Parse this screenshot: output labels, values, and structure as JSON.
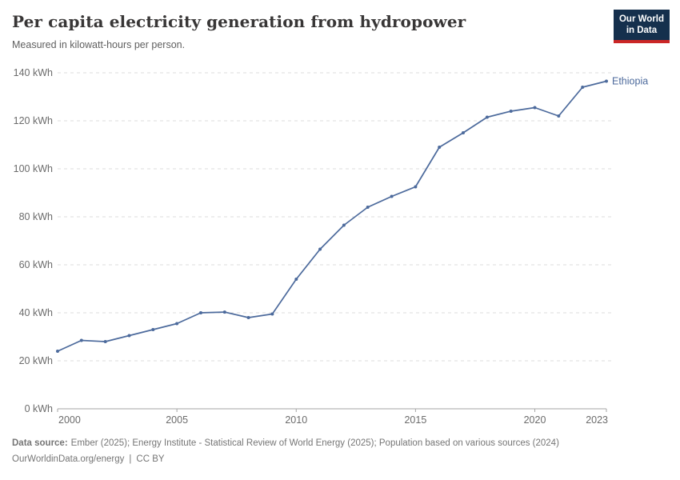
{
  "header": {
    "title": "Per capita electricity generation from hydropower",
    "subtitle": "Measured in kilowatt-hours per person.",
    "logo": {
      "line1": "Our World",
      "line2": "in Data"
    }
  },
  "chart_data": {
    "type": "line",
    "title": "Per capita electricity generation from hydropower",
    "subtitle": "Measured in kilowatt-hours per person.",
    "unit": "kWh",
    "xlabel": "",
    "ylabel": "kWh",
    "x": [
      2000,
      2001,
      2002,
      2003,
      2004,
      2005,
      2006,
      2007,
      2008,
      2009,
      2010,
      2011,
      2012,
      2013,
      2014,
      2015,
      2016,
      2017,
      2018,
      2019,
      2020,
      2021,
      2022,
      2023
    ],
    "series": [
      {
        "name": "Ethiopia",
        "color": "#4c6a9c",
        "values": [
          24,
          28.5,
          28,
          30.5,
          33,
          35.5,
          40,
          40.3,
          38,
          39.5,
          54,
          66.5,
          76.5,
          84,
          88.5,
          92.5,
          109,
          115,
          121.5,
          124,
          125.5,
          122,
          134,
          136.5
        ]
      }
    ],
    "ylim": [
      0,
      140
    ],
    "yticks": [
      0,
      20,
      40,
      60,
      80,
      100,
      120,
      140
    ],
    "ytick_labels": [
      "0 kWh",
      "20 kWh",
      "40 kWh",
      "60 kWh",
      "80 kWh",
      "100 kWh",
      "120 kWh",
      "140 kWh"
    ],
    "xticks": [
      2000,
      2005,
      2010,
      2015,
      2020,
      2023
    ],
    "xtick_labels": [
      "2000",
      "2005",
      "2010",
      "2015",
      "2020",
      "2023"
    ],
    "grid": "horizontal-dashed",
    "legend_position": "line-end-label",
    "entity_label": "Ethiopia"
  },
  "footer": {
    "datasource_label": "Data source:",
    "datasource_text": "Ember (2025); Energy Institute - Statistical Review of World Energy (2025); Population based on various sources (2024)",
    "link_text": "OurWorldinData.org/energy",
    "separator": "|",
    "license_text": "CC BY"
  },
  "colors": {
    "line": "#4c6a9c",
    "grid": "#dcdcdc",
    "axis": "#a5a5a5",
    "tick_text": "#6b6b6b",
    "logo_bg": "#15304d",
    "logo_accent": "#cb2626"
  }
}
